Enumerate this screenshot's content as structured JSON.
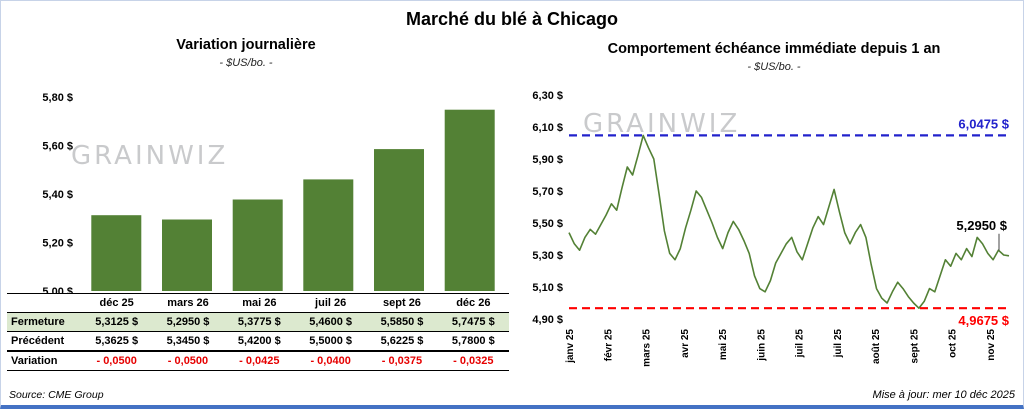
{
  "page": {
    "title": "Marché du blé à Chicago",
    "source": "Source: CME Group",
    "updated": "Mise à jour: mer 10 déc 2025",
    "watermark": "GRAINWIZ"
  },
  "left_table": {
    "rows": [
      {
        "key": "fermeture",
        "label": "Fermeture",
        "values": [
          "5,3125  $",
          "5,2950  $",
          "5,3775  $",
          "5,4600  $",
          "5,5850  $",
          "5,7475  $"
        ]
      },
      {
        "key": "precedent",
        "label": "Précédent",
        "values": [
          "5,3625  $",
          "5,3450  $",
          "5,4200  $",
          "5,5000  $",
          "5,6225  $",
          "5,7800  $"
        ]
      },
      {
        "key": "variation",
        "label": "Variation",
        "values": [
          "- 0,0500",
          "- 0,0500",
          "- 0,0425",
          "- 0,0400",
          "- 0,0375",
          "- 0,0325"
        ]
      }
    ]
  },
  "chart_data": [
    {
      "type": "bar",
      "title": "Variation  journalière",
      "subtitle": "- $US/bo. -",
      "categories": [
        "déc 25",
        "mars 26",
        "mai 26",
        "juil 26",
        "sept 26",
        "déc 26"
      ],
      "values": [
        5.3125,
        5.295,
        5.3775,
        5.46,
        5.585,
        5.7475
      ],
      "ylim": [
        5.0,
        5.8
      ],
      "ytick_step": 0.2,
      "ytick_labels": [
        "5,00 $",
        "5,20 $",
        "5,40 $",
        "5,60 $",
        "5,80 $"
      ],
      "bar_color": "#538135",
      "grid": false,
      "legend": false
    },
    {
      "type": "line",
      "title": "Comportement  échéance  immédiate  depuis 1 an",
      "subtitle": "- $US/bo. -",
      "x_labels": [
        "janv 25",
        "févr 25",
        "mars 25",
        "avr 25",
        "mai 25",
        "juin 25",
        "juil 25",
        "juil 25",
        "août 25",
        "sept 25",
        "oct 25",
        "nov 25"
      ],
      "values": [
        5.44,
        5.37,
        5.33,
        5.41,
        5.46,
        5.43,
        5.49,
        5.55,
        5.62,
        5.58,
        5.72,
        5.85,
        5.8,
        5.92,
        6.0475,
        5.97,
        5.9,
        5.68,
        5.45,
        5.31,
        5.27,
        5.34,
        5.47,
        5.58,
        5.7,
        5.66,
        5.58,
        5.5,
        5.41,
        5.34,
        5.44,
        5.51,
        5.46,
        5.39,
        5.31,
        5.17,
        5.09,
        5.07,
        5.14,
        5.25,
        5.31,
        5.37,
        5.41,
        5.32,
        5.27,
        5.37,
        5.47,
        5.54,
        5.49,
        5.6,
        5.71,
        5.57,
        5.44,
        5.37,
        5.44,
        5.49,
        5.41,
        5.24,
        5.09,
        5.03,
        5.0,
        5.07,
        5.13,
        5.09,
        5.04,
        5.0,
        4.9675,
        5.01,
        5.09,
        5.07,
        5.17,
        5.27,
        5.23,
        5.31,
        5.27,
        5.34,
        5.29,
        5.41,
        5.37,
        5.31,
        5.27,
        5.33,
        5.3,
        5.295
      ],
      "ylim": [
        4.9,
        6.3
      ],
      "ytick_step": 0.2,
      "ytick_labels": [
        "4,90 $",
        "5,10 $",
        "5,30 $",
        "5,50 $",
        "5,70 $",
        "5,90 $",
        "6,10 $",
        "6,30 $"
      ],
      "line_color": "#538135",
      "max_line": {
        "value": 6.0475,
        "label": "6,0475  $",
        "color": "#2222cc"
      },
      "min_line": {
        "value": 4.9675,
        "label": "4,9675  $",
        "color": "#ff0000"
      },
      "last_point": {
        "value": 5.295,
        "label": "5,2950 $"
      },
      "grid": false,
      "legend": false
    }
  ]
}
